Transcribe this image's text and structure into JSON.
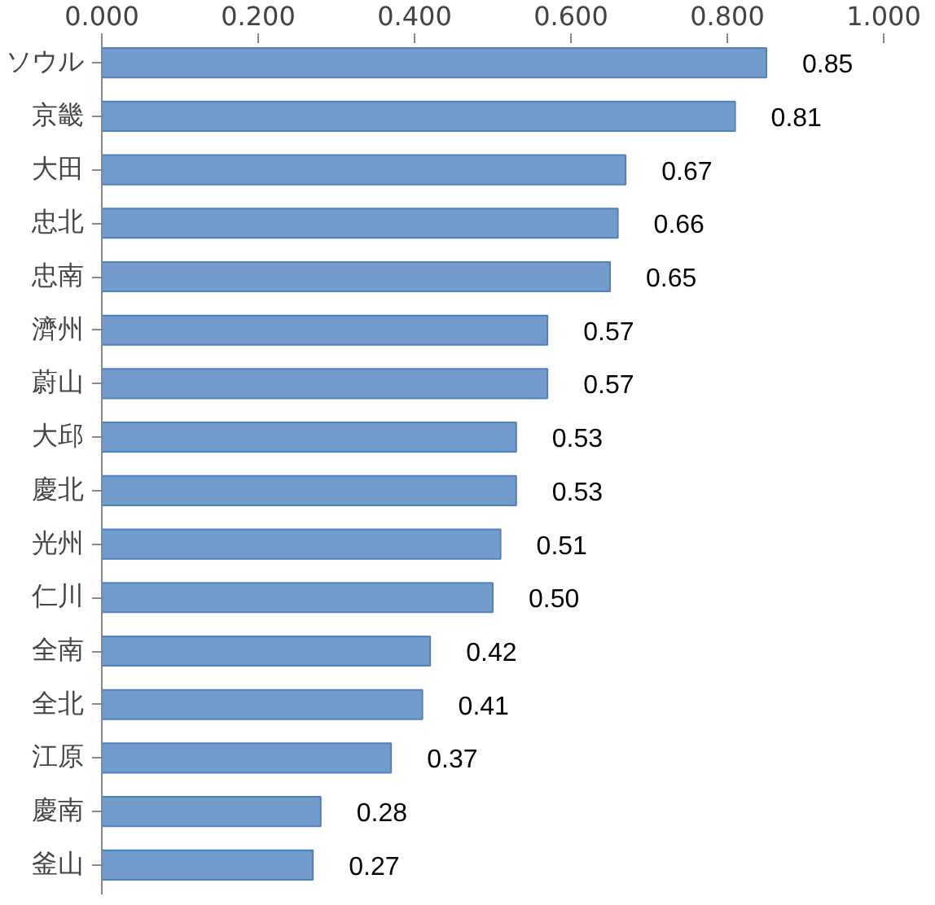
{
  "chart_data": {
    "type": "bar",
    "orientation": "horizontal",
    "categories": [
      "ソウル",
      "京畿",
      "大田",
      "忠北",
      "忠南",
      "濟州",
      "蔚山",
      "大邱",
      "慶北",
      "光州",
      "仁川",
      "全南",
      "全北",
      "江原",
      "慶南",
      "釜山"
    ],
    "values": [
      0.85,
      0.81,
      0.67,
      0.66,
      0.65,
      0.57,
      0.57,
      0.53,
      0.53,
      0.51,
      0.5,
      0.42,
      0.41,
      0.37,
      0.28,
      0.27
    ],
    "value_labels": [
      "0.85",
      "0.81",
      "0.67",
      "0.66",
      "0.65",
      "0.57",
      "0.57",
      "0.53",
      "0.53",
      "0.51",
      "0.50",
      "0.42",
      "0.41",
      "0.37",
      "0.28",
      "0.27"
    ],
    "color": "#4f81bd",
    "xlim": [
      0,
      1
    ],
    "xticks": [
      {
        "value": 0,
        "label": "0.000"
      },
      {
        "value": 0.2,
        "label": "0.200"
      },
      {
        "value": 0.4,
        "label": "0.400"
      },
      {
        "value": 0.6,
        "label": "0.600"
      },
      {
        "value": 0.8,
        "label": "0.800"
      },
      {
        "value": 1,
        "label": "1.000"
      }
    ],
    "grid": false
  }
}
